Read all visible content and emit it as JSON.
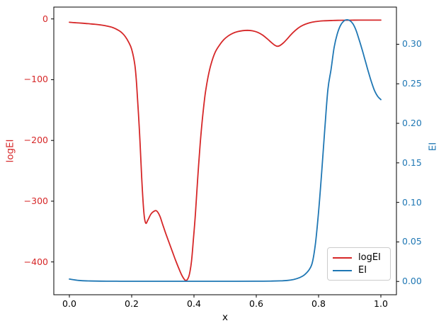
{
  "chart_data": {
    "type": "line",
    "title": "",
    "xlabel": "x",
    "xlim": [
      -0.05,
      1.05
    ],
    "grid": false,
    "x_ticks": [
      0.0,
      0.2,
      0.4,
      0.6,
      0.8,
      1.0
    ],
    "x_tick_labels": [
      "0.0",
      "0.2",
      "0.4",
      "0.6",
      "0.8",
      "1.0"
    ],
    "axes": {
      "left": {
        "label": "logEI",
        "color": "#d62728",
        "ylim": [
          -454,
          19.5
        ],
        "ticks": [
          0,
          -100,
          -200,
          -300,
          -400
        ],
        "tick_labels": [
          "0",
          "−100",
          "−200",
          "−300",
          "−400"
        ]
      },
      "right": {
        "label": "EI",
        "color": "#1f77b4",
        "ylim": [
          -0.0168,
          0.347
        ],
        "ticks": [
          0.0,
          0.05,
          0.1,
          0.15,
          0.2,
          0.25,
          0.3
        ],
        "tick_labels": [
          "0.00",
          "0.05",
          "0.10",
          "0.15",
          "0.20",
          "0.25",
          "0.30"
        ]
      }
    },
    "legend": {
      "position": "lower right",
      "entries": [
        {
          "label": "logEI",
          "color": "#d62728"
        },
        {
          "label": "EI",
          "color": "#1f77b4"
        }
      ]
    },
    "series": [
      {
        "name": "logEI",
        "axis": "left",
        "color": "#d62728",
        "x": [
          0.0,
          0.02,
          0.04,
          0.06,
          0.08,
          0.1,
          0.12,
          0.14,
          0.16,
          0.17,
          0.18,
          0.19,
          0.2,
          0.21,
          0.216,
          0.225,
          0.232,
          0.239,
          0.245,
          0.252,
          0.262,
          0.272,
          0.28,
          0.29,
          0.3,
          0.31,
          0.32,
          0.33,
          0.34,
          0.35,
          0.36,
          0.368,
          0.374,
          0.38,
          0.386,
          0.392,
          0.398,
          0.405,
          0.412,
          0.42,
          0.428,
          0.436,
          0.445,
          0.455,
          0.468,
          0.482,
          0.496,
          0.51,
          0.525,
          0.54,
          0.556,
          0.572,
          0.588,
          0.604,
          0.62,
          0.636,
          0.65,
          0.66,
          0.668,
          0.676,
          0.688,
          0.7,
          0.712,
          0.724,
          0.736,
          0.75,
          0.765,
          0.78,
          0.8,
          0.82,
          0.845,
          0.87,
          0.9,
          0.93,
          0.96,
          1.0
        ],
        "y": [
          -5.5,
          -6.3,
          -7.0,
          -7.8,
          -8.7,
          -9.9,
          -11.6,
          -14.3,
          -19.5,
          -23.5,
          -29.5,
          -38.0,
          -50.0,
          -75.0,
          -108.0,
          -185.0,
          -260.0,
          -318.0,
          -336.0,
          -331.0,
          -321.0,
          -316.5,
          -316.0,
          -324.0,
          -339.0,
          -354.0,
          -368.0,
          -382.0,
          -396.0,
          -409.0,
          -421.0,
          -428.0,
          -430.5,
          -428.0,
          -419.0,
          -399.0,
          -364.0,
          -318.0,
          -262.0,
          -205.0,
          -160.0,
          -124.0,
          -96.0,
          -74.0,
          -55.0,
          -43.0,
          -34.0,
          -28.0,
          -23.5,
          -20.8,
          -19.3,
          -18.8,
          -19.6,
          -22.0,
          -26.5,
          -33.0,
          -39.5,
          -43.5,
          -45.0,
          -43.8,
          -39.0,
          -32.5,
          -25.5,
          -19.5,
          -14.5,
          -10.3,
          -7.3,
          -5.3,
          -3.8,
          -3.0,
          -2.5,
          -2.2,
          -2.1,
          -2.0,
          -2.0,
          -2.0
        ]
      },
      {
        "name": "EI",
        "axis": "right",
        "color": "#1f77b4",
        "x": [
          0.0,
          0.03,
          0.06,
          0.1,
          0.15,
          0.2,
          0.3,
          0.4,
          0.5,
          0.6,
          0.65,
          0.68,
          0.7,
          0.72,
          0.74,
          0.755,
          0.77,
          0.78,
          0.79,
          0.8,
          0.81,
          0.82,
          0.83,
          0.84,
          0.85,
          0.86,
          0.87,
          0.88,
          0.89,
          0.9,
          0.91,
          0.92,
          0.93,
          0.94,
          0.95,
          0.96,
          0.97,
          0.98,
          0.99,
          1.0
        ],
        "y": [
          0.003,
          0.0013,
          0.0007,
          0.0004,
          0.0003,
          0.0002,
          0.0002,
          0.0002,
          0.0002,
          0.0003,
          0.0005,
          0.0008,
          0.0013,
          0.0025,
          0.005,
          0.0085,
          0.015,
          0.024,
          0.048,
          0.088,
          0.138,
          0.193,
          0.243,
          0.268,
          0.296,
          0.313,
          0.3235,
          0.329,
          0.331,
          0.33,
          0.326,
          0.318,
          0.306,
          0.293,
          0.279,
          0.265,
          0.252,
          0.241,
          0.234,
          0.23
        ]
      }
    ]
  }
}
